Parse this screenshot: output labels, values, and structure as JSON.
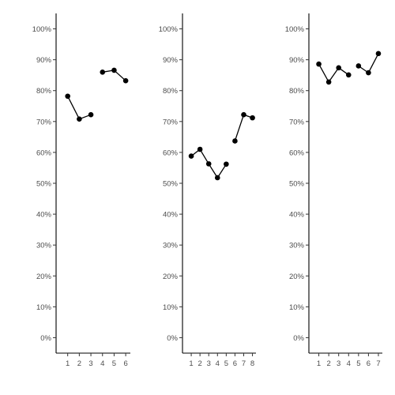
{
  "chart_data": [
    {
      "type": "line",
      "x": [
        1,
        2,
        3,
        4,
        5,
        6
      ],
      "xticks": [
        "1",
        "2",
        "3",
        "4",
        "5",
        "6"
      ],
      "values": [
        0.782,
        0.708,
        0.722,
        0.86,
        0.866,
        0.832
      ],
      "segments": [
        [
          1,
          2,
          3
        ],
        [
          4,
          5,
          6
        ]
      ],
      "ylim": [
        -0.05,
        1.05
      ],
      "xlim": [
        0,
        6.4
      ],
      "yticks": [
        "0%",
        "10%",
        "20%",
        "30%",
        "40%",
        "50%",
        "60%",
        "70%",
        "80%",
        "90%",
        "100%"
      ],
      "grid": false,
      "title": "",
      "xlabel": "",
      "ylabel": ""
    },
    {
      "type": "line",
      "x": [
        1,
        2,
        3,
        4,
        5,
        6,
        7,
        8
      ],
      "xticks": [
        "1",
        "2",
        "3",
        "4",
        "5",
        "6",
        "7",
        "8"
      ],
      "values": [
        0.588,
        0.61,
        0.563,
        0.518,
        0.562,
        0.637,
        0.722,
        0.712
      ],
      "segments": [
        [
          1,
          2,
          3,
          4,
          5
        ],
        [
          6,
          7,
          8
        ]
      ],
      "ylim": [
        -0.05,
        1.05
      ],
      "xlim": [
        0,
        8.4
      ],
      "yticks": [
        "0%",
        "10%",
        "20%",
        "30%",
        "40%",
        "50%",
        "60%",
        "70%",
        "80%",
        "90%",
        "100%"
      ],
      "grid": false,
      "title": "",
      "xlabel": "",
      "ylabel": ""
    },
    {
      "type": "line",
      "x": [
        1,
        2,
        3,
        4,
        5,
        6,
        7
      ],
      "xticks": [
        "1",
        "2",
        "3",
        "4",
        "5",
        "6",
        "7"
      ],
      "values": [
        0.886,
        0.828,
        0.874,
        0.851,
        0.88,
        0.858,
        0.92
      ],
      "segments": [
        [
          1,
          2,
          3,
          4
        ],
        [
          5,
          6,
          7
        ]
      ],
      "ylim": [
        -0.05,
        1.05
      ],
      "xlim": [
        0,
        7.4
      ],
      "yticks": [
        "0%",
        "10%",
        "20%",
        "30%",
        "40%",
        "50%",
        "60%",
        "70%",
        "80%",
        "90%",
        "100%"
      ],
      "grid": false,
      "title": "",
      "xlabel": "",
      "ylabel": ""
    }
  ]
}
